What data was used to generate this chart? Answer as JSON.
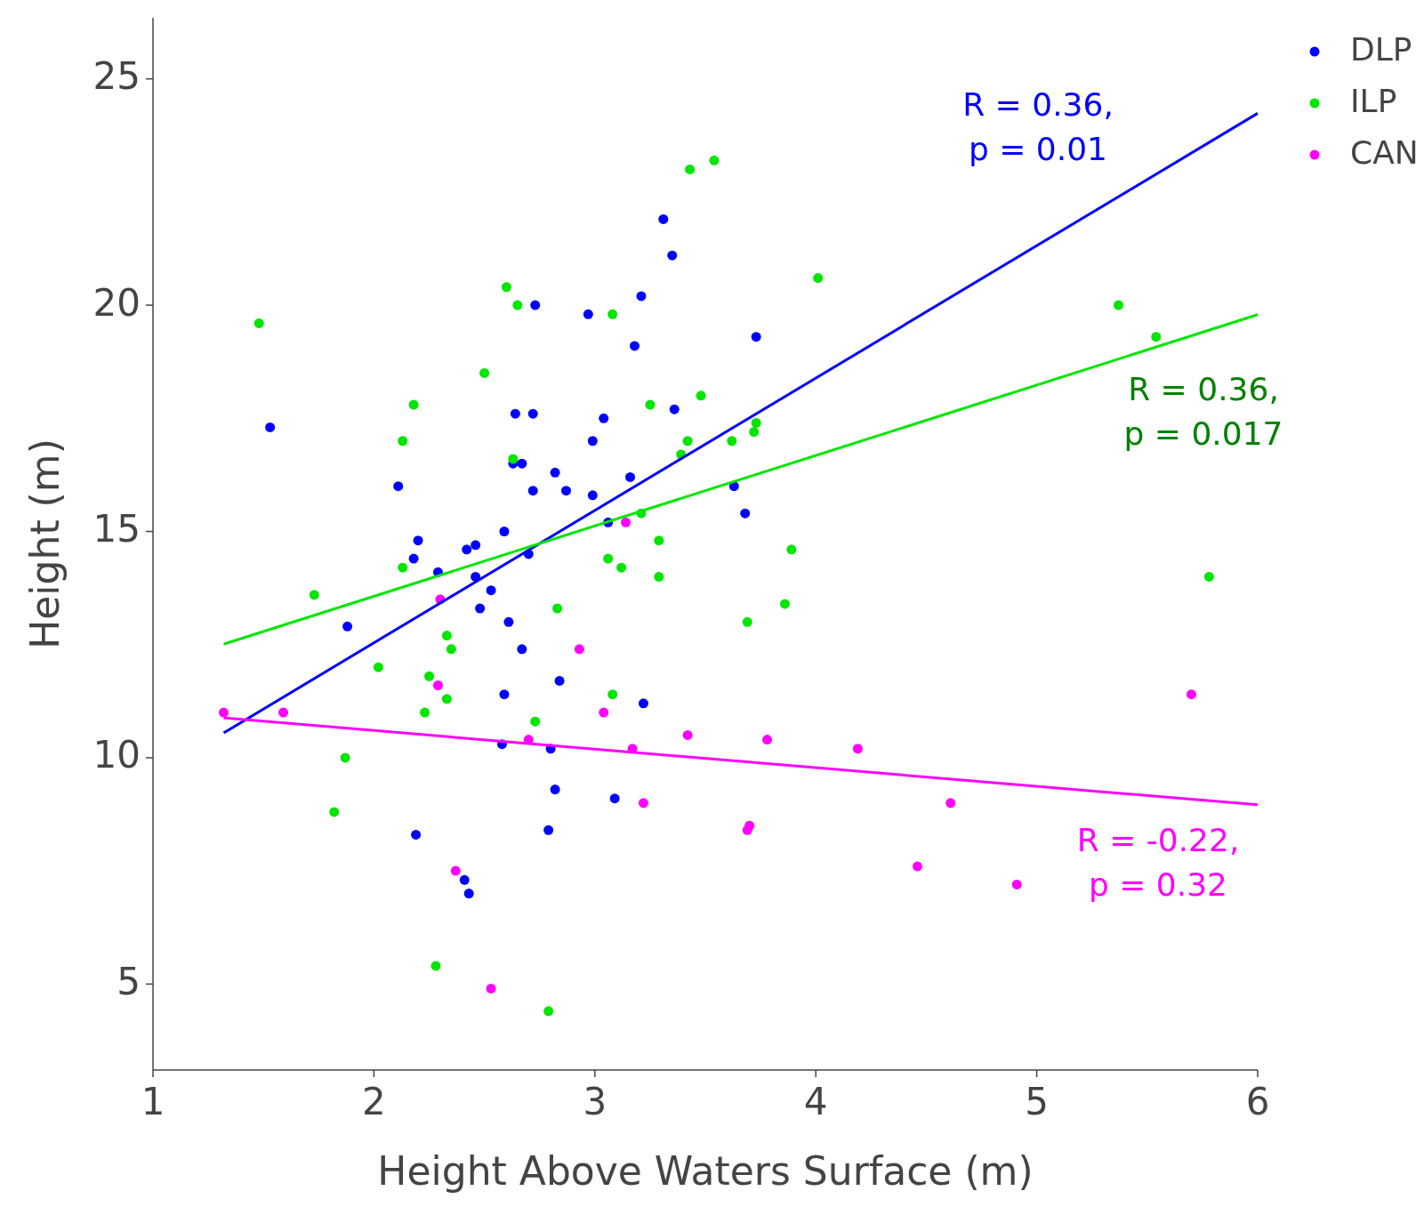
{
  "chart_data": {
    "type": "scatter",
    "xlabel": "Height Above Waters Surface (m)",
    "ylabel": "Height (m)",
    "xlim": [
      1,
      6
    ],
    "xticks": [
      1,
      2,
      3,
      4,
      5,
      6
    ],
    "ylim": [
      3.1,
      26.35
    ],
    "yticks": [
      5,
      10,
      15,
      20,
      25
    ],
    "grid": false,
    "legend": "top right",
    "marker": "circle",
    "series": [
      {
        "name": "DLP",
        "color": "#0000ff",
        "x": [
          1.53,
          1.88,
          2.11,
          2.2,
          2.18,
          2.29,
          2.19,
          2.42,
          2.46,
          2.46,
          2.48,
          2.53,
          2.41,
          2.43,
          2.59,
          2.63,
          2.67,
          2.64,
          2.72,
          2.72,
          2.73,
          2.61,
          2.67,
          2.7,
          2.59,
          2.58,
          2.8,
          2.82,
          2.87,
          2.84,
          2.82,
          2.79,
          2.97,
          2.99,
          3.04,
          2.99,
          3.06,
          3.16,
          3.18,
          3.21,
          3.22,
          3.09,
          3.31,
          3.35,
          3.36,
          3.63,
          3.68,
          3.73
        ],
        "values": [
          17.3,
          12.9,
          16.0,
          14.8,
          14.4,
          14.1,
          8.3,
          14.6,
          14.7,
          14.0,
          13.3,
          13.7,
          7.3,
          7.0,
          15.0,
          16.5,
          16.5,
          17.6,
          17.6,
          15.9,
          20.0,
          13.0,
          12.4,
          14.5,
          11.4,
          10.3,
          10.2,
          16.3,
          15.9,
          11.7,
          9.3,
          8.4,
          19.8,
          17.0,
          17.5,
          15.8,
          15.2,
          16.2,
          19.1,
          20.2,
          11.2,
          9.1,
          21.9,
          21.1,
          17.7,
          16.0,
          15.4,
          19.3
        ]
      },
      {
        "name": "ILP",
        "color": "#00e600",
        "x": [
          1.48,
          1.73,
          1.82,
          1.87,
          2.02,
          2.13,
          2.18,
          2.13,
          2.23,
          2.25,
          2.28,
          2.33,
          2.35,
          2.33,
          2.5,
          2.6,
          2.65,
          2.63,
          2.73,
          2.83,
          2.79,
          3.08,
          3.06,
          3.12,
          3.08,
          3.21,
          3.25,
          3.29,
          3.29,
          3.43,
          3.54,
          3.48,
          3.42,
          3.39,
          3.62,
          3.73,
          3.72,
          3.69,
          3.89,
          3.86,
          4.01,
          5.37,
          5.54,
          5.78
        ],
        "values": [
          19.6,
          13.6,
          8.8,
          10.0,
          12.0,
          17.0,
          17.8,
          14.2,
          11.0,
          11.8,
          5.4,
          12.7,
          12.4,
          11.3,
          18.5,
          20.4,
          20.0,
          16.6,
          10.8,
          13.3,
          4.4,
          19.8,
          14.4,
          14.2,
          11.4,
          15.4,
          17.8,
          14.8,
          14.0,
          23.0,
          23.2,
          18.0,
          17.0,
          16.7,
          17.0,
          17.4,
          17.2,
          13.0,
          14.6,
          13.4,
          20.6,
          20.0,
          19.3,
          14.0
        ]
      },
      {
        "name": "CAN",
        "color": "#ff00ff",
        "x": [
          1.32,
          1.59,
          2.3,
          2.29,
          2.37,
          2.53,
          2.7,
          2.93,
          3.04,
          3.14,
          3.17,
          3.22,
          3.42,
          3.69,
          3.7,
          3.78,
          4.19,
          4.46,
          4.61,
          4.91,
          5.7
        ],
        "values": [
          11.0,
          11.0,
          13.5,
          11.6,
          7.5,
          4.9,
          10.4,
          12.4,
          11.0,
          15.2,
          10.2,
          9.0,
          10.5,
          8.4,
          8.5,
          10.4,
          10.2,
          7.6,
          9.0,
          7.2,
          11.4
        ]
      },
      {
        "color": "#0000ff",
        "type": "line",
        "marker": "none",
        "x": [
          1.32,
          6
        ],
        "values": [
          10.55,
          24.24
        ]
      },
      {
        "color": "#00e600",
        "type": "line",
        "marker": "none",
        "x": [
          1.32,
          6
        ],
        "values": [
          12.51,
          19.79
        ]
      },
      {
        "color": "#ff00ff",
        "type": "line",
        "marker": "none",
        "x": [
          1.32,
          6
        ],
        "values": [
          10.88,
          8.96
        ]
      }
    ],
    "annotations": [
      "R = 0.36,\np = 0.01",
      "R = 0.36,\np = 0.017",
      "R = -0.22,\np = 0.32"
    ]
  }
}
